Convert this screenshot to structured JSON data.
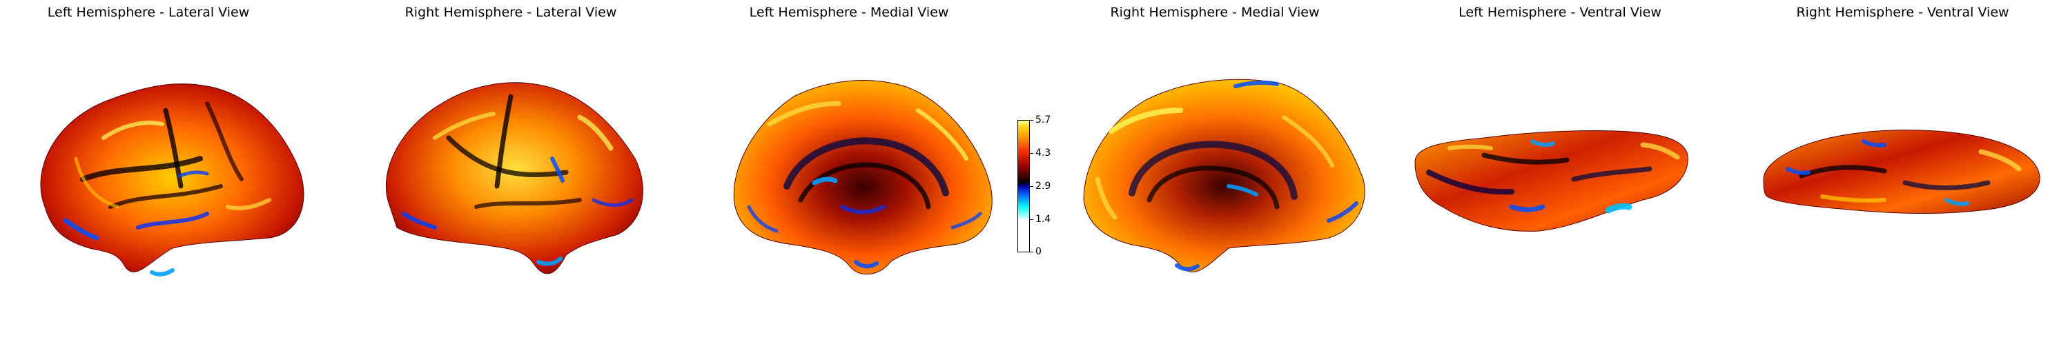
{
  "panels": [
    {
      "title": "Left Hemisphere - Lateral View"
    },
    {
      "title": "Right Hemisphere - Lateral View"
    },
    {
      "title": "Left Hemisphere - Medial View"
    },
    {
      "title": "Right Hemisphere - Medial View"
    },
    {
      "title": "Left Hemisphere - Ventral View"
    },
    {
      "title": "Right Hemisphere - Ventral View"
    }
  ],
  "colorbar": {
    "ticks": [
      "5.7",
      "4.3",
      "2.9",
      "1.4",
      "0"
    ],
    "min": 0,
    "max": 5.7,
    "colormap": [
      "#ffffff",
      "#00ffff",
      "#0000a0",
      "#000000",
      "#a00000",
      "#ff3000",
      "#ff8c00",
      "#ffff80"
    ]
  }
}
